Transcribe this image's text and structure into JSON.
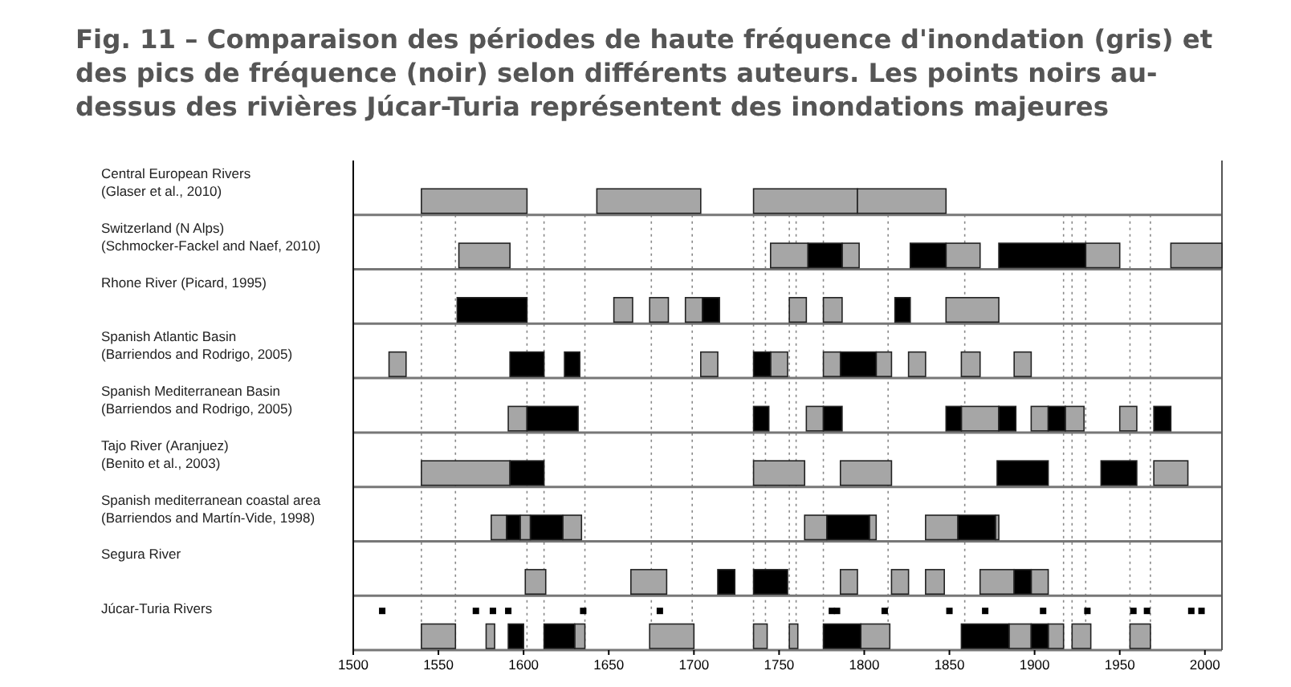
{
  "chart_data": {
    "type": "bar",
    "orientation": "horizontal",
    "title": "Fig. 11 – Comparaison des périodes de haute fréquence d'inondation (gris) et des pics de fréquence (noir) selon différents auteurs. Les points noirs au-dessus des rivières Júcar-Turia représentent des inondations majeures",
    "categories": [
      "Central European Rivers\n(Glaser et al., 2010)",
      "Switzerland (N Alps)\n(Schmocker-Fackel and Naef, 2010)",
      "Rhone River (Picard, 1995)",
      "Spanish Atlantic Basin\n(Barriendos and Rodrigo, 2005)",
      "Spanish Mediterranean Basin\n(Barriendos and Rodrigo, 2005)",
      "Tajo River (Aranjuez)\n(Benito et al., 2003)",
      "Spanish mediterranean coastal area\n(Barriendos and Martín-Vide, 1998)",
      "Segura River",
      "Júcar-Turia Rivers"
    ],
    "xlim": [
      1500,
      2010
    ],
    "xticks": [
      1500,
      1550,
      1600,
      1650,
      1700,
      1750,
      1800,
      1850,
      1900,
      1950,
      2000
    ],
    "series": [
      {
        "color": "#a6a6a6",
        "base": [
          1540,
          1562,
          1653,
          1521,
          1591,
          1540,
          1581,
          1601,
          1540
        ],
        "values": [
          62,
          30,
          11,
          10,
          11,
          52,
          9,
          12,
          20
        ]
      },
      {
        "color": "#a6a6a6",
        "base": [
          1643,
          1745,
          1674,
          1704,
          1766,
          1735,
          1598,
          1663,
          1578
        ],
        "values": [
          61,
          22,
          11,
          10,
          10,
          30,
          6,
          21,
          5
        ]
      },
      {
        "color": "#a6a6a6",
        "base": [
          1735,
          1787,
          1695,
          1745,
          1857,
          1786,
          1623,
          1786,
          1630
        ],
        "values": [
          61,
          10,
          10,
          10,
          22,
          30,
          11,
          10,
          6
        ]
      },
      {
        "color": "#a6a6a6",
        "base": [
          1796,
          1848,
          1756,
          1776,
          1898,
          1970,
          1765,
          1816,
          1674
        ],
        "values": [
          52,
          20,
          10,
          10,
          10,
          20,
          13,
          10,
          26
        ]
      },
      {
        "color": "#a6a6a6",
        "base": [
          null,
          1930,
          1776,
          1807,
          1918,
          null,
          1803,
          1836,
          1735
        ],
        "values": [
          null,
          20,
          11,
          9,
          11,
          null,
          4,
          11,
          8
        ]
      },
      {
        "color": "#a6a6a6",
        "base": [
          null,
          1980,
          1848,
          1826,
          1950,
          null,
          1836,
          1868,
          1756
        ],
        "values": [
          null,
          30,
          31,
          10,
          10,
          null,
          19,
          20,
          5
        ]
      },
      {
        "color": "#a6a6a6",
        "base": [
          null,
          null,
          null,
          1857,
          null,
          null,
          1877,
          1898,
          1798
        ],
        "values": [
          null,
          null,
          null,
          11,
          null,
          null,
          2,
          10,
          17
        ]
      },
      {
        "color": "#a6a6a6",
        "base": [
          null,
          null,
          null,
          1888,
          null,
          null,
          null,
          null,
          1885
        ],
        "values": [
          null,
          null,
          null,
          10,
          null,
          null,
          null,
          null,
          13
        ]
      },
      {
        "color": "#a6a6a6",
        "base": [
          null,
          null,
          null,
          null,
          null,
          null,
          null,
          null,
          1908
        ],
        "values": [
          null,
          null,
          null,
          null,
          null,
          null,
          null,
          null,
          9
        ]
      },
      {
        "color": "#a6a6a6",
        "base": [
          null,
          null,
          null,
          null,
          null,
          null,
          null,
          null,
          1922
        ],
        "values": [
          null,
          null,
          null,
          null,
          null,
          null,
          null,
          null,
          11
        ]
      },
      {
        "color": "#a6a6a6",
        "base": [
          null,
          null,
          null,
          null,
          null,
          null,
          null,
          null,
          1956
        ],
        "values": [
          null,
          null,
          null,
          null,
          null,
          null,
          null,
          null,
          12
        ]
      },
      {
        "color": "#000000",
        "base": [
          null,
          1767,
          1561,
          1592,
          1602,
          1592,
          1590,
          1714,
          1591
        ],
        "values": [
          null,
          20,
          41,
          20,
          30,
          20,
          8,
          10,
          9
        ]
      },
      {
        "color": "#000000",
        "base": [
          null,
          1827,
          1705,
          1624,
          1735,
          1878,
          1604,
          1735,
          1612
        ],
        "values": [
          null,
          21,
          10,
          9,
          9,
          30,
          19,
          20,
          18
        ]
      },
      {
        "color": "#000000",
        "base": [
          null,
          1879,
          1818,
          1735,
          1776,
          1939,
          1778,
          1888,
          1776
        ],
        "values": [
          null,
          51,
          9,
          10,
          11,
          21,
          25,
          10,
          22
        ]
      },
      {
        "color": "#000000",
        "base": [
          null,
          null,
          null,
          1786,
          1848,
          null,
          1855,
          null,
          1857
        ],
        "values": [
          null,
          null,
          null,
          21,
          9,
          null,
          22,
          null,
          28
        ]
      },
      {
        "color": "#000000",
        "base": [
          null,
          null,
          null,
          null,
          1879,
          null,
          null,
          null,
          1898
        ],
        "values": [
          null,
          null,
          null,
          null,
          10,
          null,
          null,
          null,
          10
        ]
      },
      {
        "color": "#000000",
        "base": [
          null,
          null,
          null,
          null,
          1908,
          null,
          null,
          null,
          null
        ],
        "values": [
          null,
          null,
          null,
          null,
          10,
          null,
          null,
          null,
          null
        ]
      },
      {
        "color": "#000000",
        "base": [
          null,
          null,
          null,
          null,
          1970,
          null,
          null,
          null,
          null
        ],
        "values": [
          null,
          null,
          null,
          null,
          10,
          null,
          null,
          null,
          null
        ]
      },
      {
        "type": "scatter",
        "color": "#000000",
        "marker": "square",
        "x": [
          "Júcar-Turia Rivers",
          "Júcar-Turia Rivers",
          "Júcar-Turia Rivers",
          "Júcar-Turia Rivers",
          "Júcar-Turia Rivers",
          "Júcar-Turia Rivers",
          "Júcar-Turia Rivers",
          "Júcar-Turia Rivers",
          "Júcar-Turia Rivers",
          "Júcar-Turia Rivers",
          "Júcar-Turia Rivers",
          "Júcar-Turia Rivers",
          "Júcar-Turia Rivers",
          "Júcar-Turia Rivers",
          "Júcar-Turia Rivers",
          "Júcar-Turia Rivers",
          "Júcar-Turia Rivers"
        ],
        "values": [
          1517,
          1572,
          1582,
          1591,
          1635,
          1680,
          1781,
          1784,
          1812,
          1850,
          1871,
          1905,
          1931,
          1958,
          1966,
          1992,
          1998
        ]
      }
    ],
    "ref_lines": [
      {
        "axis": "x",
        "value": 1540,
        "line_style": "dotted"
      },
      {
        "axis": "x",
        "value": 1560,
        "line_style": "dotted"
      },
      {
        "axis": "x",
        "value": 1602,
        "line_style": "dotted"
      },
      {
        "axis": "x",
        "value": 1612,
        "line_style": "dotted"
      },
      {
        "axis": "x",
        "value": 1636,
        "line_style": "dotted"
      },
      {
        "axis": "x",
        "value": 1675,
        "line_style": "dotted"
      },
      {
        "axis": "x",
        "value": 1699,
        "line_style": "dotted"
      },
      {
        "axis": "x",
        "value": 1735,
        "line_style": "dotted"
      },
      {
        "axis": "x",
        "value": 1742,
        "line_style": "dotted"
      },
      {
        "axis": "x",
        "value": 1756,
        "line_style": "dotted"
      },
      {
        "axis": "x",
        "value": 1760,
        "line_style": "dotted"
      },
      {
        "axis": "x",
        "value": 1776,
        "line_style": "dotted"
      },
      {
        "axis": "x",
        "value": 1814,
        "line_style": "dotted"
      },
      {
        "axis": "x",
        "value": 1859,
        "line_style": "dotted"
      },
      {
        "axis": "x",
        "value": 1917,
        "line_style": "dotted"
      },
      {
        "axis": "x",
        "value": 1922,
        "line_style": "dotted"
      },
      {
        "axis": "x",
        "value": 1930,
        "line_style": "dotted"
      },
      {
        "axis": "x",
        "value": 1956,
        "line_style": "dotted"
      },
      {
        "axis": "x",
        "value": 1968,
        "line_style": "dotted"
      }
    ]
  }
}
